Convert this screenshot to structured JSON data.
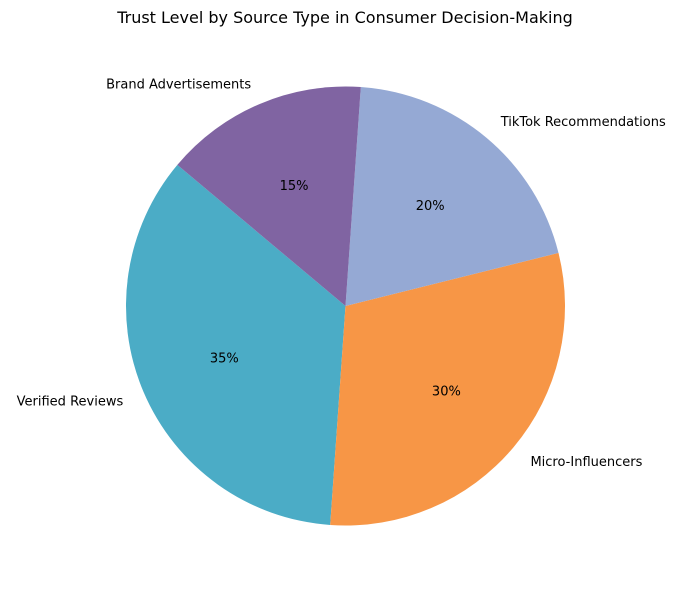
{
  "chart_data": {
    "type": "pie",
    "title": "Trust Level by Source Type in Consumer Decision-Making",
    "categories": [
      "Verified Reviews",
      "Micro-Influencers",
      "TikTok Recommendations",
      "Brand Advertisements"
    ],
    "values": [
      35,
      30,
      20,
      15
    ],
    "pct_labels": [
      "35%",
      "30%",
      "20%",
      "15%"
    ],
    "colors": [
      "#4BACC6",
      "#F79646",
      "#95A9D4",
      "#8064A2"
    ],
    "start_angle_deg": 140,
    "direction": "counterclockwise"
  }
}
